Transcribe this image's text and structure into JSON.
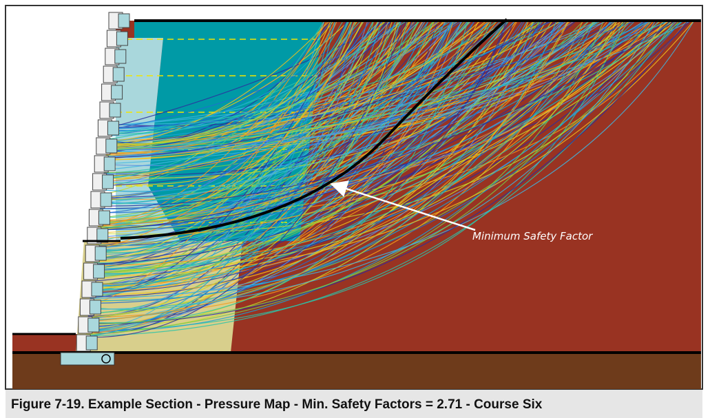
{
  "figure": {
    "annotation": "Minimum Safety Factor",
    "caption": "Figure 7-19. Example Section - Pressure Map - Min. Safety Factors = 2.71 - Course Six"
  }
}
